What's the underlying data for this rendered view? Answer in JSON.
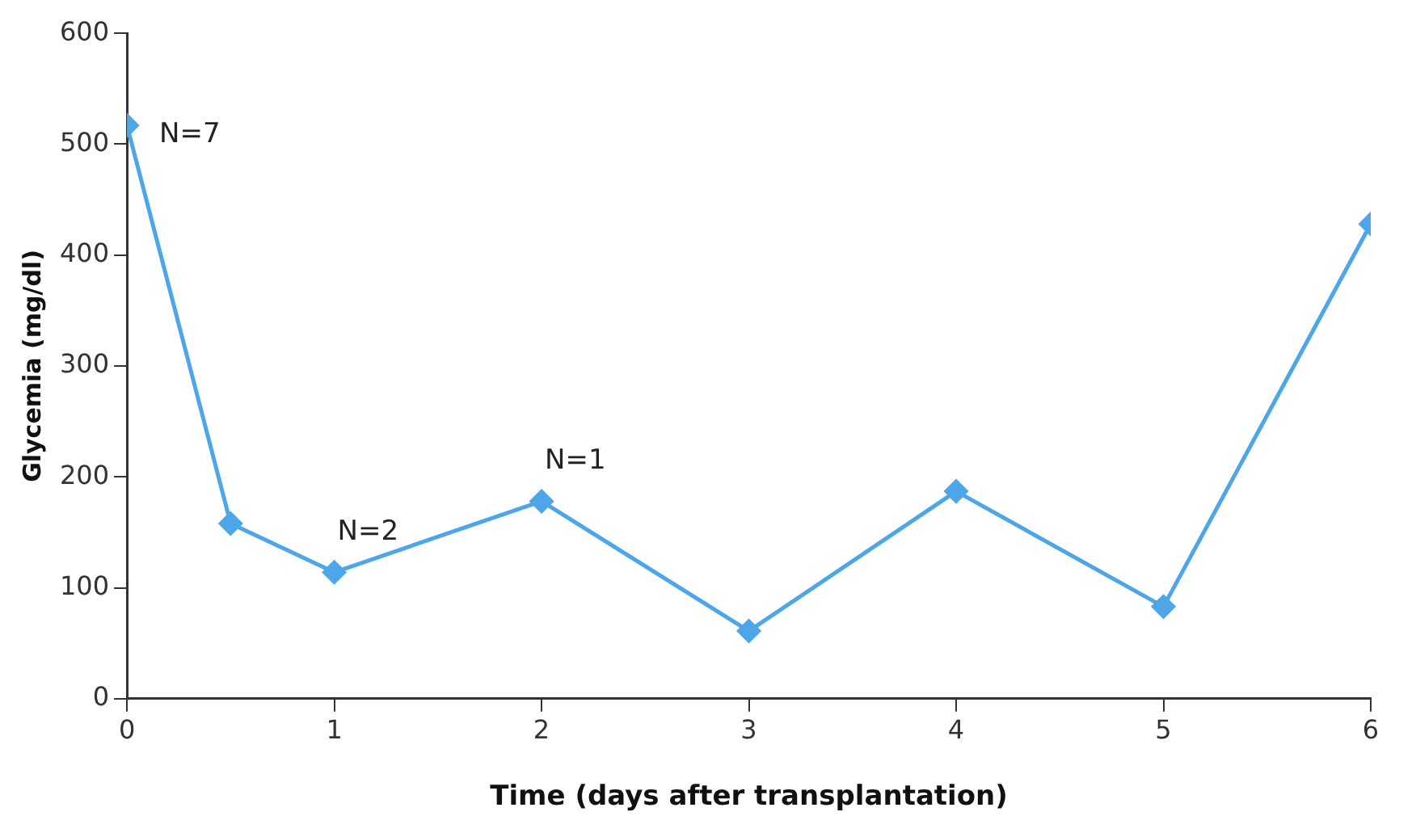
{
  "chart_data": {
    "type": "line",
    "xlabel": "Time (days after transplantation)",
    "ylabel": "Glycemia (mg/dl)",
    "x": [
      0,
      0.5,
      1,
      2,
      3,
      4,
      5,
      6
    ],
    "series": [
      {
        "color": "#4da6e8",
        "values": [
          517,
          158,
          114,
          178,
          61,
          187,
          83,
          428
        ]
      }
    ],
    "xlim": [
      0,
      6
    ],
    "xticks": [
      0,
      1,
      2,
      3,
      4,
      5,
      6
    ],
    "ylim": [
      0,
      600
    ],
    "yticks": [
      0,
      100,
      200,
      300,
      400,
      500,
      600
    ],
    "grid": false,
    "legend": false,
    "marker": "diamond",
    "line_style": "solid",
    "annotations": [
      {
        "text": "N=7",
        "x": 0,
        "y": 517
      },
      {
        "text": "N=2",
        "x": 1,
        "y": 114
      },
      {
        "text": "N=1",
        "x": 2,
        "y": 178
      }
    ]
  }
}
